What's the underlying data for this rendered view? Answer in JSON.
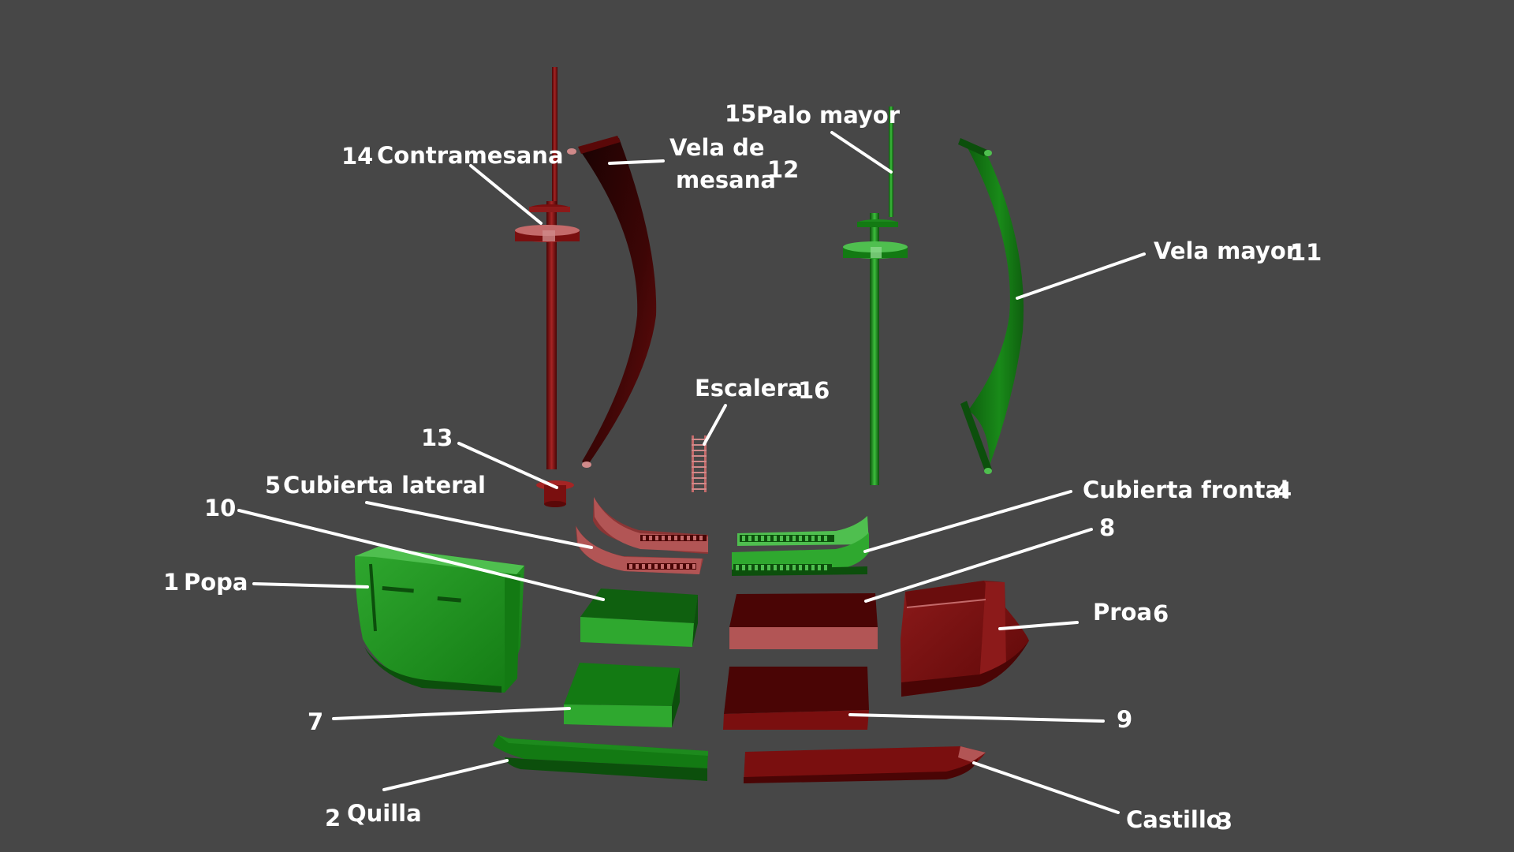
{
  "colors": {
    "background": "#474747",
    "green_part": "#1d8a1d",
    "green_dark": "#0c4f0c",
    "green_light": "#4fbf4f",
    "red_part": "#7a0f0f",
    "red_dark": "#4a0505",
    "red_light": "#c46a6a",
    "pink_part": "#b25555",
    "label_text": "#ffffff",
    "leader_line": "#ffffff"
  },
  "labels": {
    "palo_mayor": {
      "num": "15",
      "name": "Palo mayor"
    },
    "contramesana": {
      "num": "14",
      "name": "Contramesana"
    },
    "vela_de_mesana": {
      "line1": "Vela de",
      "line2": "mesana",
      "num": "12"
    },
    "vela_mayor": {
      "name": "Vela mayor",
      "num": "11"
    },
    "escalera": {
      "name": "Escalera",
      "num": "16"
    },
    "item_13": {
      "num": "13"
    },
    "cubierta_lateral": {
      "num": "5",
      "name": "Cubierta lateral"
    },
    "cubierta_frontal": {
      "name": "Cubierta frontal",
      "num": "4"
    },
    "item_10": {
      "num": "10"
    },
    "item_8": {
      "num": "8"
    },
    "popa": {
      "num": "1",
      "name": "Popa"
    },
    "proa": {
      "name": "Proa",
      "num": "6"
    },
    "item_7": {
      "num": "7"
    },
    "item_9": {
      "num": "9"
    },
    "quilla": {
      "num": "2",
      "name": "Quilla"
    },
    "castillo": {
      "name": "Castillo",
      "num": "3"
    }
  }
}
